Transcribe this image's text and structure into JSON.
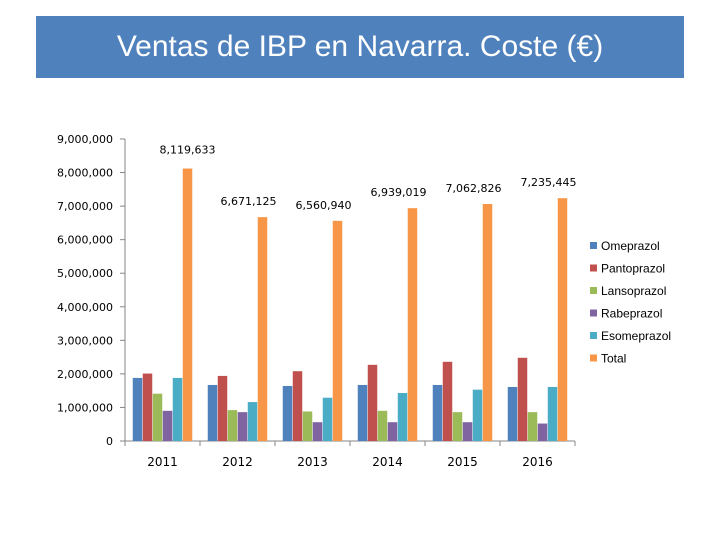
{
  "chart_data": {
    "type": "bar",
    "title": "Ventas de IBP en Navarra. Coste (€)",
    "xlabel": "",
    "ylabel": "",
    "categories": [
      "2011",
      "2012",
      "2013",
      "2014",
      "2015",
      "2016"
    ],
    "ylim": [
      0,
      9000000
    ],
    "yticks": [
      0,
      1000000,
      2000000,
      3000000,
      4000000,
      5000000,
      6000000,
      7000000,
      8000000,
      9000000
    ],
    "ytick_labels": [
      "0",
      "1,000,000",
      "2,000,000",
      "3,000,000",
      "4,000,000",
      "5,000,000",
      "6,000,000",
      "7,000,000",
      "8,000,000",
      "9,000,000"
    ],
    "legend_position": "right",
    "grid": false,
    "series": [
      {
        "name": "Omeprazol",
        "color": "#4f81bd",
        "values": [
          1880000,
          1670000,
          1640000,
          1670000,
          1670000,
          1610000
        ]
      },
      {
        "name": "Pantoprazol",
        "color": "#c0504d",
        "values": [
          2010000,
          1940000,
          2080000,
          2270000,
          2360000,
          2480000
        ]
      },
      {
        "name": "Lansoprazol",
        "color": "#9bbb59",
        "values": [
          1410000,
          920000,
          880000,
          900000,
          860000,
          860000
        ]
      },
      {
        "name": "Rabeprazol",
        "color": "#8064a2",
        "values": [
          900000,
          860000,
          560000,
          560000,
          560000,
          520000
        ]
      },
      {
        "name": "Esomeprazol",
        "color": "#4bacc6",
        "values": [
          1880000,
          1160000,
          1290000,
          1430000,
          1530000,
          1610000
        ]
      },
      {
        "name": "Total",
        "color": "#f79646",
        "values": [
          8119633,
          6671125,
          6560940,
          6939019,
          7062826,
          7235445
        ]
      }
    ],
    "data_labels": [
      "8,119,633",
      "6,671,125",
      "6,560,940",
      "6,939,019",
      "7,062,826",
      "7,235,445"
    ]
  }
}
